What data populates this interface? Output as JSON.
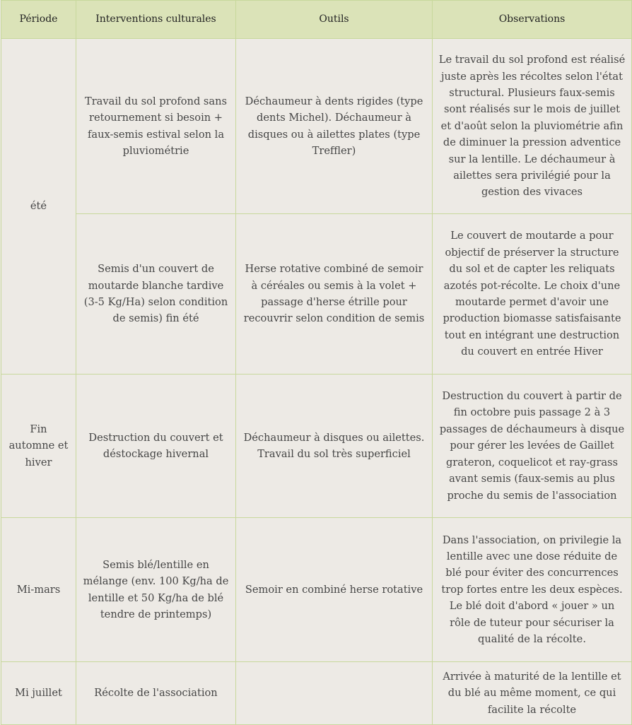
{
  "headers": [
    "Période",
    "Interventions culturales",
    "Outils",
    "Observations"
  ],
  "rows": [
    {
      "periode": "été",
      "interventions": "Travail du sol profond sans retournement si besoin + faux-semis estival selon la pluviométrie",
      "outils": "Déchaumeur à dents rigides (type dents Michel). Déchaumeur à disques ou à ailettes plates (type Treffler)",
      "observations": "Le travail du sol profond est réalisé juste après les récoltes selon l'état structural. Plusieurs faux-semis sont réalisés sur le mois de juillet et d'août selon la pluviométrie afin de diminuer la pression adventice sur la lentille. Le déchaumeur à ailettes sera privilégié pour la gestion des vivaces"
    },
    {
      "interventions": "Semis d'un couvert de moutarde blanche tardive (3-5 Kg/Ha) selon condition de semis) fin été",
      "outils": "Herse rotative combiné de semoir à céréales ou semis à la volet + passage d'herse étrille pour recouvrir selon condition de semis",
      "observations": "Le couvert de moutarde a pour objectif de préserver la structure du sol et de capter les reliquats azotés pot-récolte. Le choix d'une moutarde permet d'avoir une production biomasse satisfaisante tout en intégrant une destruction du couvert en entrée Hiver"
    },
    {
      "periode": "Fin automne et hiver",
      "interventions": "Destruction du couvert et déstockage hivernal",
      "outils": "Déchaumeur à disques ou ailettes. Travail du sol très superficiel",
      "observations": "Destruction du couvert à partir de fin octobre puis passage 2 à 3 passages de déchaumeurs à disque pour gérer les levées de Gaillet grateron, coquelicot et ray-grass avant semis (faux-semis au plus proche du semis de l'association"
    },
    {
      "periode": "Mi-mars",
      "interventions": "Semis blé/lentille en mélange (env. 100 Kg/ha de lentille et 50 Kg/ha de blé tendre de printemps)",
      "outils": "Semoir en combiné herse rotative",
      "observations": "Dans l'association, on privilegie la lentille avec une dose réduite de blé pour éviter des concurrences trop fortes entre les deux espèces. Le blé doit d'abord « jouer » un rôle de tuteur pour sécuriser la qualité de la récolte."
    },
    {
      "periode": "Mi juillet",
      "interventions": "Récolte de l'association",
      "outils": "",
      "observations": "Arrivée à maturité de la lentille et du blé au même moment, ce qui facilite la récolte"
    }
  ]
}
